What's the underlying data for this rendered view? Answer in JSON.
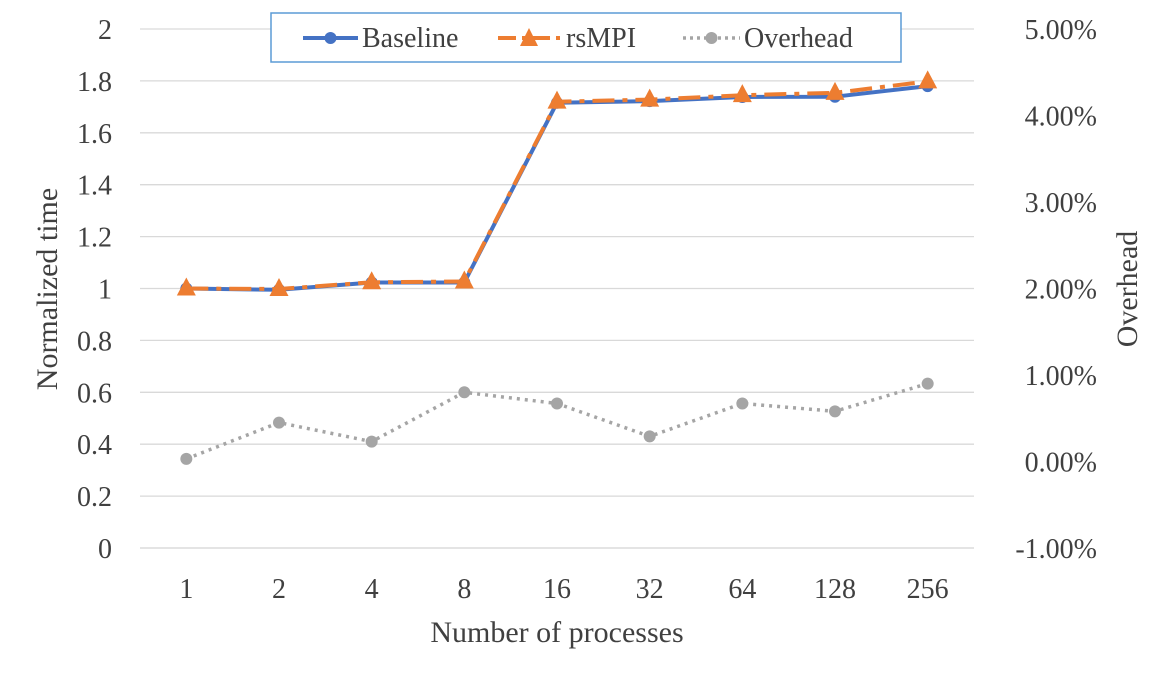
{
  "chart_data": {
    "type": "line",
    "xlabel": "Number of processes",
    "ylabel": "Normalized time",
    "y2label": "Overhead",
    "categories": [
      "1",
      "2",
      "4",
      "8",
      "16",
      "32",
      "64",
      "128",
      "256"
    ],
    "ylim": [
      0,
      2
    ],
    "y_ticks": [
      "0",
      "0.2",
      "0.4",
      "0.6",
      "0.8",
      "1",
      "1.2",
      "1.4",
      "1.6",
      "1.8",
      "2"
    ],
    "y2lim": [
      -0.01,
      0.05
    ],
    "y2_ticks": [
      "-1.00%",
      "0.00%",
      "1.00%",
      "2.00%",
      "3.00%",
      "4.00%",
      "5.00%"
    ],
    "grid": true,
    "legend_position": "top",
    "series": [
      {
        "name": "Baseline",
        "axis": "left",
        "color": "#4472C4",
        "marker": "circle",
        "line_style": "solid",
        "values": [
          1.0,
          0.995,
          1.023,
          1.023,
          1.716,
          1.722,
          1.738,
          1.739,
          1.78
        ]
      },
      {
        "name": "rsMPI",
        "axis": "left",
        "color": "#ED7D31",
        "marker": "triangle",
        "line_style": "dashdot",
        "values": [
          1.0,
          0.998,
          1.024,
          1.027,
          1.72,
          1.728,
          1.745,
          1.754,
          1.798
        ]
      },
      {
        "name": "Overhead",
        "axis": "right",
        "color": "#A5A5A5",
        "marker": "circle",
        "line_style": "dotted",
        "values": [
          0.0003,
          0.0045,
          0.0023,
          0.008,
          0.0067,
          0.0029,
          0.0067,
          0.0058,
          0.009
        ]
      }
    ]
  }
}
